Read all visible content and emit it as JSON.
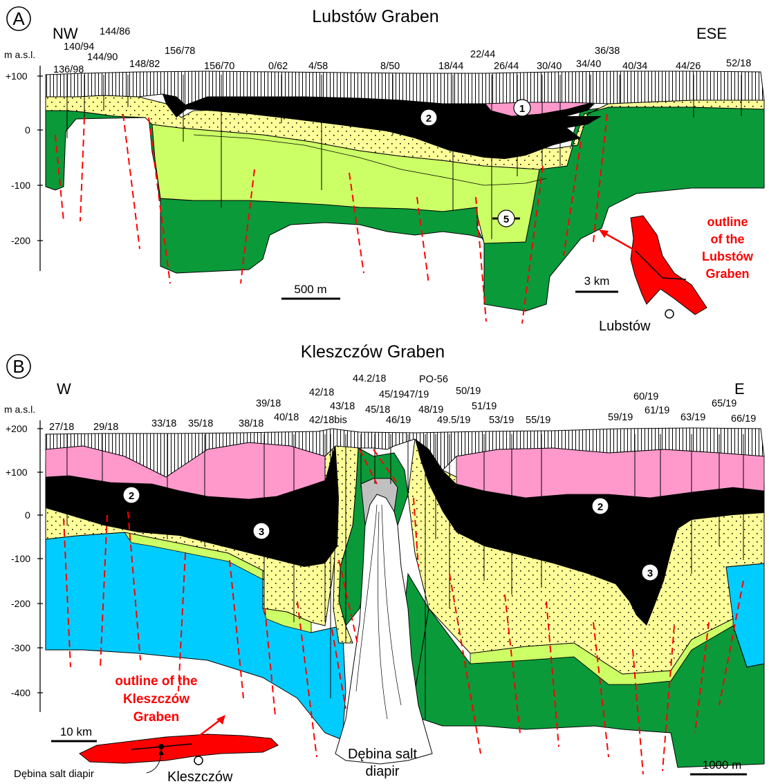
{
  "panel_a": {
    "letter": "A",
    "title": "Lubstów Graben",
    "dir_left": "NW",
    "dir_right": "ESE",
    "unit": "m a.s.l.",
    "y_ticks": [
      "+100",
      "0",
      "-100",
      "-200"
    ],
    "wells": [
      "136/98",
      "140/94",
      "144/86",
      "144/90",
      "148/82",
      "156/78",
      "156/70",
      "0/62",
      "4/58",
      "8/50",
      "18/44",
      "22/44",
      "26/44",
      "30/40",
      "34/40",
      "36/38",
      "40/34",
      "44/26",
      "52/18"
    ],
    "markers": [
      "1",
      "2",
      "5"
    ],
    "scale": "500 m",
    "inset_scale": "3 km",
    "inset_label": [
      "outline",
      "of the",
      "Lubstów",
      "Graben"
    ],
    "inset_town": "Lubstów"
  },
  "panel_b": {
    "letter": "B",
    "title": "Kleszczów Graben",
    "dir_left": "W",
    "dir_right": "E",
    "unit": "m a.s.l.",
    "y_ticks": [
      "+200",
      "+100",
      "0",
      "-100",
      "-200",
      "-300",
      "-400"
    ],
    "wells": [
      "27/18",
      "29/18",
      "33/18",
      "35/18",
      "38/18",
      "39/18",
      "40/18",
      "42/18",
      "42/18bis",
      "43/18",
      "44.2/18",
      "45/18",
      "45/19",
      "46/19",
      "47/19",
      "PO-56",
      "48/19",
      "49.5/19",
      "50/19",
      "51/19",
      "53/19",
      "55/19",
      "59/19",
      "60/19",
      "61/19",
      "63/19",
      "65/19",
      "66/19"
    ],
    "markers": [
      "2",
      "3",
      "2",
      "3"
    ],
    "scale": "1000 m",
    "inset_scale": "10 km",
    "inset_label": [
      "outline of the",
      "Kleszczów",
      "Graben"
    ],
    "diapir_label": [
      "Dębina salt",
      "diapir"
    ],
    "inset_diapir": "Dębina salt diapir",
    "inset_town": "Kleszczów"
  },
  "colors": {
    "green": "#0a9a3a",
    "light_green": "#ccff66",
    "sand": "#ffff99",
    "pink": "#ff99cc",
    "lignite": "#000000",
    "blue": "#00ccff",
    "salt_grey": "#c0c0c0",
    "fault": "#ff0000"
  }
}
